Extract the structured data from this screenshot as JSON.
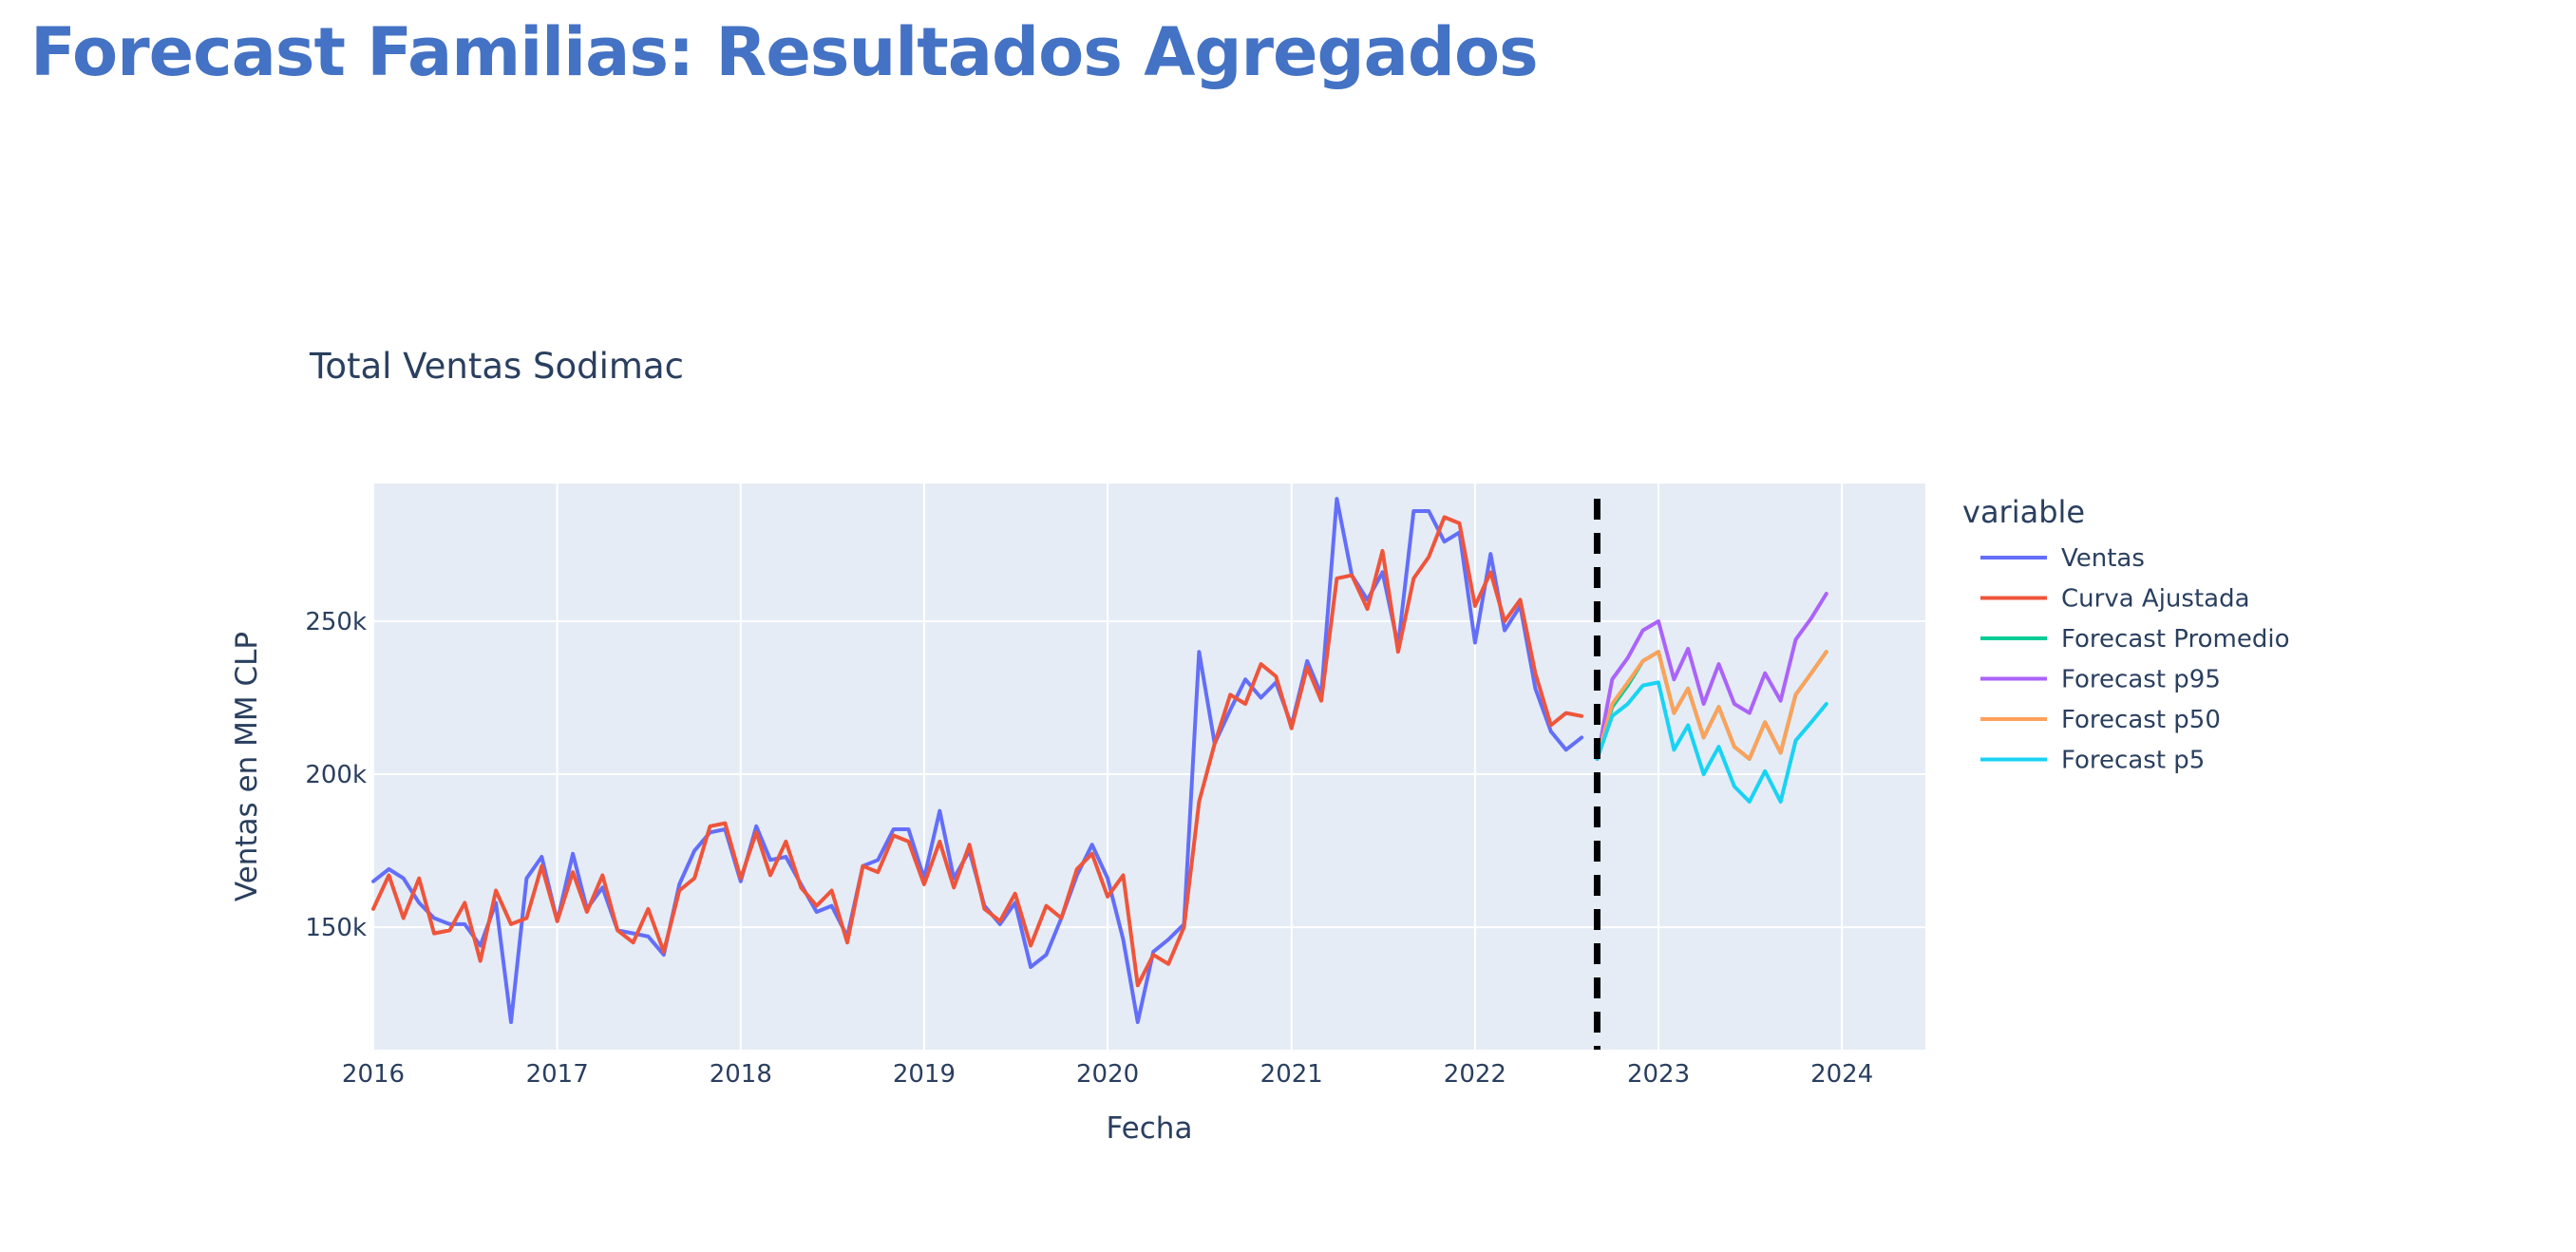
{
  "page": {
    "title": "Forecast Familias: Resultados Agregados"
  },
  "colors": {
    "title": "#4472C4",
    "plot_bg": "#E5ECF6",
    "grid": "#ffffff",
    "text": "#2a3f5f"
  },
  "chart_data": {
    "type": "line",
    "title": "Total Ventas Sodimac",
    "xlabel": "Fecha",
    "ylabel": "Ventas en MM CLP",
    "x_axis": "date",
    "xlim": [
      "2016-01-01",
      "2024-06-15"
    ],
    "ylim": [
      110,
      295
    ],
    "x_ticks": [
      "2016",
      "2017",
      "2018",
      "2019",
      "2020",
      "2021",
      "2022",
      "2023",
      "2024"
    ],
    "y_ticks": [
      150,
      200,
      250
    ],
    "y_tick_labels": [
      "150k",
      "200k",
      "250k"
    ],
    "grid": true,
    "legend_title": "variable",
    "legend_position": "right",
    "vline": {
      "x": "2022-09-01",
      "style": "dashed",
      "color": "#000000"
    },
    "series": [
      {
        "name": "Ventas",
        "color": "#636EFA",
        "x": [
          "2016-01",
          "2016-02",
          "2016-03",
          "2016-04",
          "2016-05",
          "2016-06",
          "2016-07",
          "2016-08",
          "2016-09",
          "2016-10",
          "2016-11",
          "2016-12",
          "2017-01",
          "2017-02",
          "2017-03",
          "2017-04",
          "2017-05",
          "2017-06",
          "2017-07",
          "2017-08",
          "2017-09",
          "2017-10",
          "2017-11",
          "2017-12",
          "2018-01",
          "2018-02",
          "2018-03",
          "2018-04",
          "2018-05",
          "2018-06",
          "2018-07",
          "2018-08",
          "2018-09",
          "2018-10",
          "2018-11",
          "2018-12",
          "2019-01",
          "2019-02",
          "2019-03",
          "2019-04",
          "2019-05",
          "2019-06",
          "2019-07",
          "2019-08",
          "2019-09",
          "2019-10",
          "2019-11",
          "2019-12",
          "2020-01",
          "2020-02",
          "2020-03",
          "2020-04",
          "2020-05",
          "2020-06",
          "2020-07",
          "2020-08",
          "2020-09",
          "2020-10",
          "2020-11",
          "2020-12",
          "2021-01",
          "2021-02",
          "2021-03",
          "2021-04",
          "2021-05",
          "2021-06",
          "2021-07",
          "2021-08",
          "2021-09",
          "2021-10",
          "2021-11",
          "2021-12",
          "2022-01",
          "2022-02",
          "2022-03",
          "2022-04",
          "2022-05",
          "2022-06",
          "2022-07",
          "2022-08"
        ],
        "values": [
          165,
          169,
          166,
          158,
          153,
          151,
          151,
          144,
          158,
          119,
          166,
          173,
          152,
          174,
          156,
          163,
          149,
          148,
          147,
          141,
          164,
          175,
          181,
          182,
          165,
          183,
          172,
          173,
          164,
          155,
          157,
          147,
          170,
          172,
          182,
          182,
          166,
          188,
          166,
          175,
          157,
          151,
          158,
          137,
          141,
          153,
          167,
          177,
          166,
          146,
          119,
          142,
          146,
          151,
          240,
          210,
          221,
          231,
          225,
          230,
          216,
          237,
          226,
          290,
          265,
          257,
          266,
          242,
          286,
          286,
          276,
          279,
          243,
          272,
          247,
          255,
          228,
          214,
          208,
          212
        ],
        "_note_values_end": "2022-08"
      },
      {
        "name": "Curva Ajustada",
        "color": "#EF553B",
        "x": [
          "2016-01",
          "2016-02",
          "2016-03",
          "2016-04",
          "2016-05",
          "2016-06",
          "2016-07",
          "2016-08",
          "2016-09",
          "2016-10",
          "2016-11",
          "2016-12",
          "2017-01",
          "2017-02",
          "2017-03",
          "2017-04",
          "2017-05",
          "2017-06",
          "2017-07",
          "2017-08",
          "2017-09",
          "2017-10",
          "2017-11",
          "2017-12",
          "2018-01",
          "2018-02",
          "2018-03",
          "2018-04",
          "2018-05",
          "2018-06",
          "2018-07",
          "2018-08",
          "2018-09",
          "2018-10",
          "2018-11",
          "2018-12",
          "2019-01",
          "2019-02",
          "2019-03",
          "2019-04",
          "2019-05",
          "2019-06",
          "2019-07",
          "2019-08",
          "2019-09",
          "2019-10",
          "2019-11",
          "2019-12",
          "2020-01",
          "2020-02",
          "2020-03",
          "2020-04",
          "2020-05",
          "2020-06",
          "2020-07",
          "2020-08",
          "2020-09",
          "2020-10",
          "2020-11",
          "2020-12",
          "2021-01",
          "2021-02",
          "2021-03",
          "2021-04",
          "2021-05",
          "2021-06",
          "2021-07",
          "2021-08",
          "2021-09",
          "2021-10",
          "2021-11",
          "2021-12",
          "2022-01",
          "2022-02",
          "2022-03",
          "2022-04",
          "2022-05",
          "2022-06",
          "2022-07",
          "2022-08"
        ],
        "values": [
          156,
          167,
          153,
          166,
          148,
          149,
          158,
          139,
          162,
          151,
          153,
          170,
          152,
          168,
          155,
          167,
          149,
          145,
          156,
          142,
          162,
          166,
          183,
          184,
          166,
          181,
          167,
          178,
          163,
          157,
          162,
          145,
          170,
          168,
          180,
          178,
          164,
          178,
          163,
          177,
          156,
          152,
          161,
          144,
          157,
          153,
          169,
          174,
          160,
          167,
          131,
          141,
          138,
          150,
          191,
          210,
          226,
          223,
          236,
          232,
          215,
          235,
          224,
          264,
          265,
          254,
          273,
          240,
          264,
          271,
          284,
          282,
          255,
          266,
          250,
          257,
          233,
          216,
          220,
          219
        ]
      },
      {
        "name": "Forecast Promedio",
        "color": "#00CC96",
        "x": [
          "2022-09",
          "2022-10",
          "2022-11",
          "2022-12",
          "2023-01",
          "2023-02",
          "2023-03",
          "2023-04",
          "2023-05",
          "2023-06",
          "2023-07",
          "2023-08",
          "2023-09",
          "2023-10",
          "2023-11",
          "2023-12"
        ],
        "values": [
          205,
          222,
          229,
          237,
          240,
          220,
          228,
          212,
          222,
          209,
          205,
          217,
          207,
          226,
          233,
          240
        ]
      },
      {
        "name": "Forecast p95",
        "color": "#AB63FA",
        "x": [
          "2022-09",
          "2022-10",
          "2022-11",
          "2022-12",
          "2023-01",
          "2023-02",
          "2023-03",
          "2023-04",
          "2023-05",
          "2023-06",
          "2023-07",
          "2023-08",
          "2023-09",
          "2023-10",
          "2023-11",
          "2023-12"
        ],
        "values": [
          205,
          231,
          238,
          247,
          250,
          231,
          241,
          223,
          236,
          223,
          220,
          233,
          224,
          244,
          251,
          259
        ]
      },
      {
        "name": "Forecast p50",
        "color": "#FFA15A",
        "x": [
          "2022-09",
          "2022-10",
          "2022-11",
          "2022-12",
          "2023-01",
          "2023-02",
          "2023-03",
          "2023-04",
          "2023-05",
          "2023-06",
          "2023-07",
          "2023-08",
          "2023-09",
          "2023-10",
          "2023-11",
          "2023-12"
        ],
        "values": [
          205,
          223,
          230,
          237,
          240,
          220,
          228,
          212,
          222,
          209,
          205,
          217,
          207,
          226,
          233,
          240
        ]
      },
      {
        "name": "Forecast p5",
        "color": "#19D3F3",
        "x": [
          "2022-09",
          "2022-10",
          "2022-11",
          "2022-12",
          "2023-01",
          "2023-02",
          "2023-03",
          "2023-04",
          "2023-05",
          "2023-06",
          "2023-07",
          "2023-08",
          "2023-09",
          "2023-10",
          "2023-11",
          "2023-12"
        ],
        "values": [
          205,
          219,
          223,
          229,
          230,
          208,
          216,
          200,
          209,
          196,
          191,
          201,
          191,
          211,
          217,
          223
        ]
      }
    ]
  }
}
